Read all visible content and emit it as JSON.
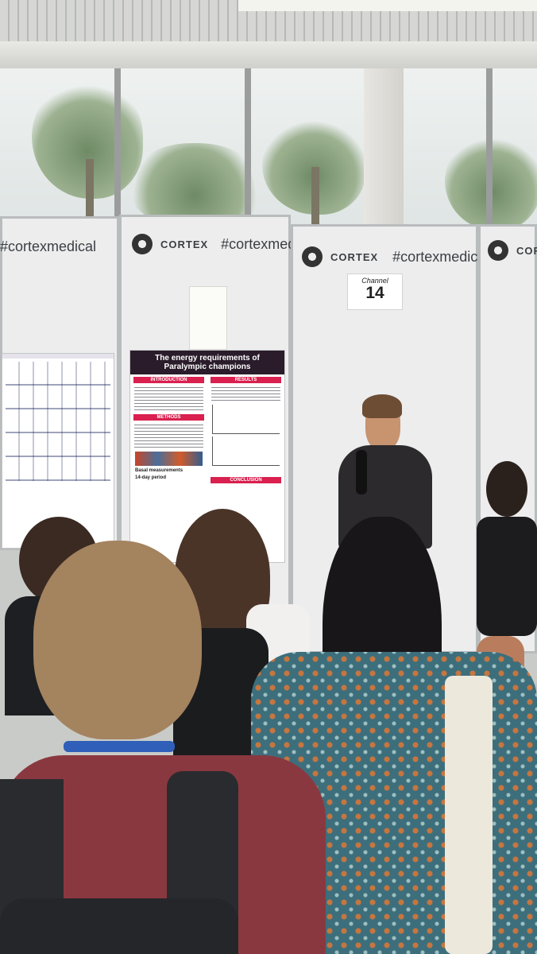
{
  "scene": {
    "description_type": "photo",
    "palette": {
      "board": "#ededee",
      "poster_header": "#2a1c2a",
      "poster_accent": "#d9204f",
      "presenter_jacket": "#2c2a2d",
      "shirt_red": "#8a3840",
      "dress_blue": "#3d6e7c",
      "lanyard": "#2f5fb8"
    }
  },
  "boards": {
    "far_left": {
      "hashtag": "#cortexmedical"
    },
    "center_left": {
      "logo": "CORTEX",
      "hashtag": "#cortexmedical"
    },
    "center_right": {
      "logo": "CORTEX",
      "hashtag": "#cortexmedical"
    },
    "far_right": {
      "logo": "CORTEX"
    }
  },
  "poster_main": {
    "title": "The energy requirements of Paralympic champions",
    "sections": [
      "INTRODUCTION",
      "RESULTS",
      "METHODS",
      "Basal measurements",
      "14-day period",
      "CONCLUSION"
    ]
  },
  "number_card": {
    "label": "Channel",
    "number": "14"
  }
}
